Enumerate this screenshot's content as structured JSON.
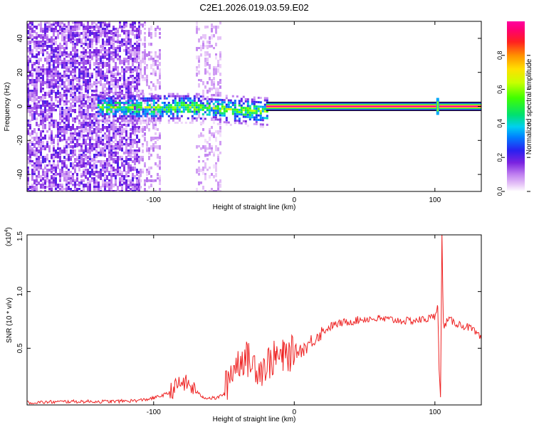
{
  "title": "C2E1.2026.019.03.59.E02",
  "chart_data": [
    {
      "type": "heatmap",
      "title": "C2E1.2026.019.03.59.E02",
      "xlabel": "Height of straight line (km)",
      "ylabel": "Frequency (Hz)",
      "xlim": [
        -190,
        133
      ],
      "ylim": [
        -50,
        50
      ],
      "x_ticks": [
        -100,
        0,
        100
      ],
      "y_ticks": [
        -40,
        -20,
        0,
        20,
        40
      ],
      "colorbar": {
        "label": "Normalized spectral amplitude",
        "range": [
          0,
          1
        ],
        "ticks": [
          0.0,
          0.2,
          0.4,
          0.6,
          0.8
        ],
        "tick_labels": [
          "0.0",
          "0.2",
          "0.4",
          "0.6",
          "0.8"
        ]
      },
      "regions": [
        {
          "name": "broadband noise",
          "x_range": [
            -190,
            -110
          ],
          "freq_range": [
            -50,
            50
          ],
          "amplitude": 0.15
        },
        {
          "name": "sparse noise",
          "x_range": [
            -110,
            -95
          ],
          "freq_range": [
            -50,
            50
          ],
          "amplitude": 0.08
        },
        {
          "name": "noise column",
          "x_range": [
            -70,
            -53
          ],
          "freq_range": [
            -50,
            50
          ],
          "amplitude": 0.07
        },
        {
          "name": "doppler trace",
          "x_range": [
            -140,
            -20
          ],
          "freq_center": 0,
          "amplitude": 0.45
        },
        {
          "name": "strong carrier line",
          "x_range": [
            -20,
            133
          ],
          "freq_center": 0,
          "amplitude": 1.0
        },
        {
          "name": "spike",
          "x_range": [
            100,
            104
          ],
          "freq_range": [
            -5,
            5
          ],
          "amplitude": 0.6
        }
      ]
    },
    {
      "type": "line",
      "xlabel": "Height of straight line (km)",
      "ylabel": "SNR (10 * v/v)",
      "y_multiplier": "(x10",
      "y_multiplier_exp": "4",
      "y_multiplier_close": ")",
      "xlim": [
        -190,
        133
      ],
      "ylim": [
        0,
        1.5
      ],
      "x_ticks": [
        -100,
        0,
        100
      ],
      "y_ticks": [
        0.5,
        1.0,
        1.5
      ],
      "y_tick_labels": [
        "0.5",
        "1.0",
        "1.5"
      ],
      "series": [
        {
          "name": "SNR",
          "color": "#ee2222",
          "x": [
            -190,
            -160,
            -130,
            -110,
            -100,
            -90,
            -85,
            -80,
            -75,
            -70,
            -65,
            -60,
            -55,
            -50,
            -45,
            -40,
            -37,
            -33,
            -28,
            -23,
            -18,
            -13,
            -8,
            -3,
            2,
            7,
            12,
            17,
            22,
            27,
            32,
            37,
            42,
            50,
            60,
            70,
            80,
            90,
            95,
            100,
            102,
            103,
            104,
            105,
            106,
            110,
            115,
            120,
            125,
            130,
            133
          ],
          "y": [
            0.02,
            0.03,
            0.03,
            0.04,
            0.06,
            0.1,
            0.15,
            0.2,
            0.18,
            0.12,
            0.07,
            0.06,
            0.06,
            0.1,
            0.3,
            0.38,
            0.42,
            0.4,
            0.35,
            0.32,
            0.38,
            0.42,
            0.42,
            0.45,
            0.47,
            0.5,
            0.56,
            0.62,
            0.66,
            0.7,
            0.72,
            0.73,
            0.74,
            0.76,
            0.76,
            0.75,
            0.74,
            0.75,
            0.76,
            0.78,
            0.9,
            0.3,
            0.05,
            1.5,
            0.7,
            0.75,
            0.72,
            0.7,
            0.68,
            0.62,
            0.58
          ]
        }
      ]
    }
  ]
}
